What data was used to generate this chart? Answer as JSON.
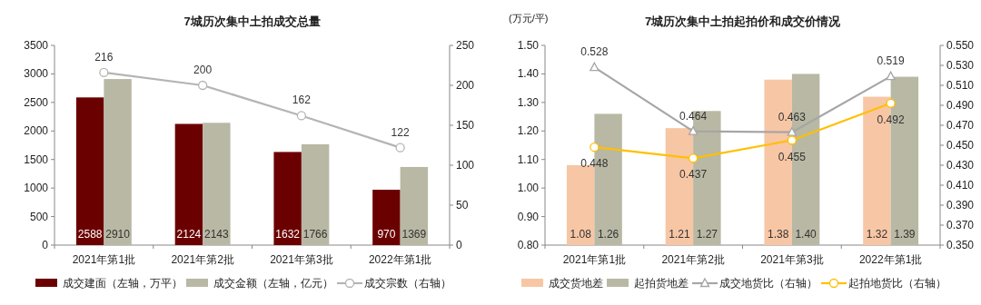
{
  "chart_data": [
    {
      "type": "bar",
      "title": "7城历次集中土拍成交总量",
      "categories": [
        "2021年第1批",
        "2021年第2批",
        "2021年第3批",
        "2022年第1批"
      ],
      "series": [
        {
          "name": "成交建面（左轴，万平）",
          "color": "#6b0000",
          "values": [
            2588,
            2124,
            1632,
            970
          ]
        },
        {
          "name": "成交金额（左轴，亿元）",
          "color": "#b8b8a4",
          "values": [
            2910,
            2143,
            1766,
            1369
          ]
        },
        {
          "name": "成交宗数（右轴）",
          "type": "line",
          "axis": "y2",
          "marker": "circle",
          "color": "#b4b4b4",
          "values": [
            216,
            200,
            162,
            122
          ]
        }
      ],
      "ylim": [
        0,
        3500
      ],
      "yticks": [
        0,
        500,
        1000,
        1500,
        2000,
        2500,
        3000,
        3500
      ],
      "y2lim": [
        0,
        250
      ],
      "y2ticks": [
        0,
        50,
        100,
        150,
        200,
        250
      ],
      "data_labels": true,
      "legend": "bottom",
      "grid": false
    },
    {
      "type": "bar",
      "title": "7城历次集中土拍起拍价和成交价情况",
      "ylabel": "(万元/平)",
      "categories": [
        "2021年第1批",
        "2021年第2批",
        "2021年第3批",
        "2022年第1批"
      ],
      "series": [
        {
          "name": "成交货地差",
          "color": "#f7c6a5",
          "values": [
            1.08,
            1.21,
            1.38,
            1.32
          ]
        },
        {
          "name": "起拍货地差",
          "color": "#b8b8a4",
          "values": [
            1.26,
            1.27,
            1.4,
            1.39
          ],
          "value_labels": [
            "1.26",
            "1.27",
            "1.40",
            "1.39"
          ]
        },
        {
          "name": "成交地货比（右轴）",
          "type": "line",
          "axis": "y2",
          "marker": "triangle",
          "color": "#a6a6a6",
          "values": [
            0.528,
            0.464,
            0.463,
            0.519
          ]
        },
        {
          "name": "起拍地货比（右轴）",
          "type": "line",
          "axis": "y2",
          "marker": "circle",
          "color": "#ffc000",
          "values": [
            0.448,
            0.437,
            0.455,
            0.492
          ]
        }
      ],
      "ylim": [
        0.8,
        1.5
      ],
      "yticks": [
        {
          "value": 0.8,
          "label": "0.80"
        },
        {
          "value": 0.9,
          "label": "0.90"
        },
        {
          "value": 1.0,
          "label": "1.00"
        },
        {
          "value": 1.1,
          "label": "1.10"
        },
        {
          "value": 1.2,
          "label": "1.20"
        },
        {
          "value": 1.3,
          "label": "1.30"
        },
        {
          "value": 1.4,
          "label": "1.40"
        },
        {
          "value": 1.5,
          "label": "1.50"
        }
      ],
      "y2lim": [
        0.35,
        0.55
      ],
      "y2ticks": [
        {
          "value": 0.35,
          "label": "0.350"
        },
        {
          "value": 0.37,
          "label": "0.370"
        },
        {
          "value": 0.39,
          "label": "0.390"
        },
        {
          "value": 0.41,
          "label": "0.410"
        },
        {
          "value": 0.43,
          "label": "0.430"
        },
        {
          "value": 0.45,
          "label": "0.450"
        },
        {
          "value": 0.47,
          "label": "0.470"
        },
        {
          "value": 0.49,
          "label": "0.490"
        },
        {
          "value": 0.51,
          "label": "0.510"
        },
        {
          "value": 0.53,
          "label": "0.530"
        },
        {
          "value": 0.55,
          "label": "0.550"
        }
      ],
      "data_labels": true,
      "legend": "bottom",
      "grid": false
    }
  ]
}
